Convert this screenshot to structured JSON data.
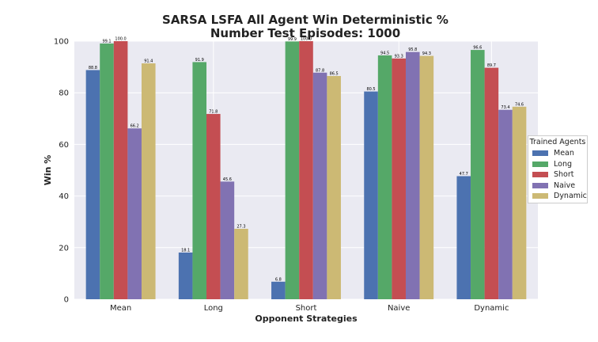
{
  "chart_data": {
    "type": "bar",
    "title": "SARSA LSFA All Agent Win Deterministic %",
    "subtitle": "Number Test Episodes: 1000",
    "xlabel": "Opponent Strategies",
    "ylabel": "Win %",
    "ylim": [
      0,
      100
    ],
    "yticks": [
      "0",
      "20",
      "40",
      "60",
      "80",
      "100"
    ],
    "categories": [
      "Mean",
      "Long",
      "Short",
      "Naive",
      "Dynamic"
    ],
    "grid": true,
    "legend_title": "Trained Agents",
    "legend_position": "right",
    "series": [
      {
        "name": "Mean",
        "color": "#4c72b0",
        "values": [
          88.8,
          18.1,
          6.8,
          80.5,
          47.7
        ],
        "labels": [
          "88.8",
          "18.1",
          "6.8",
          "80.5",
          "47.7"
        ]
      },
      {
        "name": "Long",
        "color": "#55a868",
        "values": [
          99.1,
          91.9,
          99.9,
          94.5,
          96.6
        ],
        "labels": [
          "99.1",
          "91.9",
          "99.9",
          "94.5",
          "96.6"
        ]
      },
      {
        "name": "Short",
        "color": "#c44e52",
        "values": [
          100.0,
          71.8,
          100.0,
          93.3,
          89.7
        ],
        "labels": [
          "100.0",
          "71.8",
          "100.0",
          "93.3",
          "89.7"
        ]
      },
      {
        "name": "Naive",
        "color": "#8172b2",
        "values": [
          66.2,
          45.6,
          87.8,
          95.8,
          73.4
        ],
        "labels": [
          "66.2",
          "45.6",
          "87.8",
          "95.8",
          "73.4"
        ]
      },
      {
        "name": "Dynamic",
        "color": "#ccb974",
        "values": [
          91.4,
          27.3,
          86.5,
          94.3,
          74.6
        ],
        "labels": [
          "91.4",
          "27.3",
          "86.5",
          "94.3",
          "74.6"
        ]
      }
    ]
  }
}
